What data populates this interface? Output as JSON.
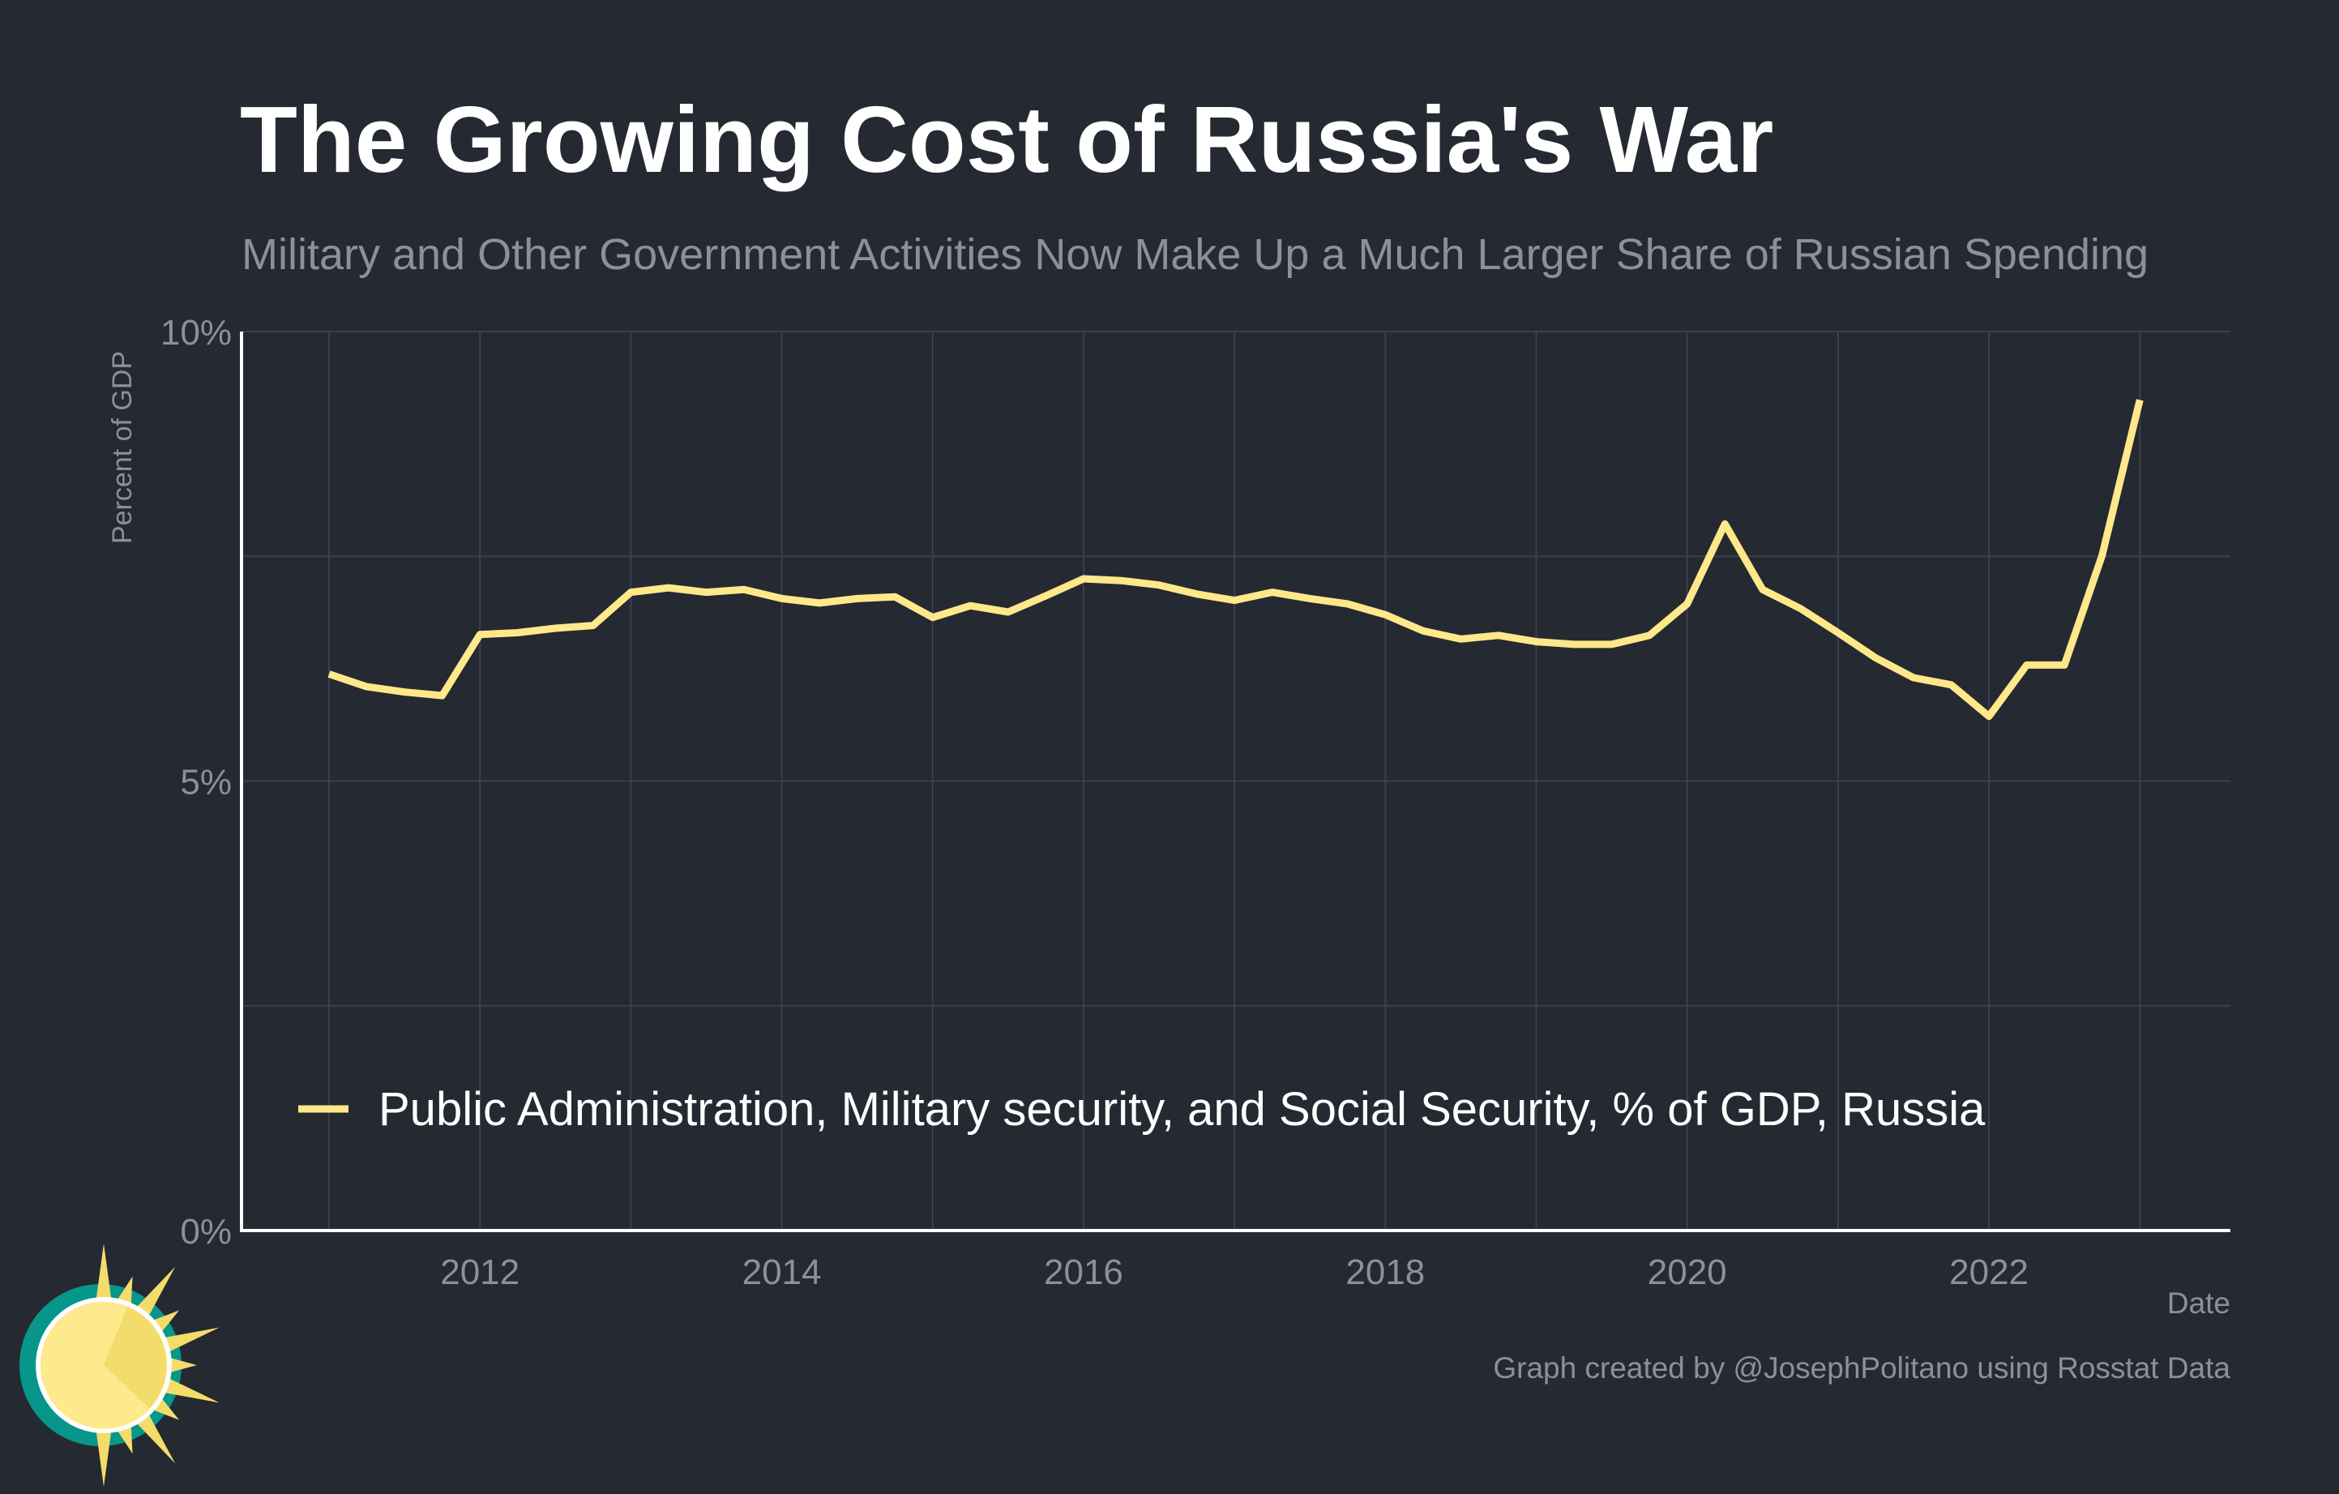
{
  "title": "The Growing Cost of Russia's War",
  "subtitle": "Military and Other Government Activities Now Make Up a Much Larger Share of Russian Spending",
  "credit": "Graph created by @JosephPolitano using Rosstat Data",
  "colors": {
    "background": "#252932",
    "line": "#ffe88a",
    "grid": "#3c404a",
    "axis": "#ffffff",
    "text_muted": "#8e9097",
    "logo_teal": "#07968a",
    "logo_yellow": "#f4dc6a"
  },
  "logo": {
    "icon": "sun-logo-icon"
  },
  "chart_data": {
    "type": "line",
    "xlabel": "Date",
    "ylabel": "Percent of GDP",
    "xlim": [
      2010.42,
      2023.6
    ],
    "ylim": [
      0,
      10
    ],
    "x_ticks": [
      {
        "value": 2012,
        "label": "2012"
      },
      {
        "value": 2014,
        "label": "2014"
      },
      {
        "value": 2016,
        "label": "2016"
      },
      {
        "value": 2018,
        "label": "2018"
      },
      {
        "value": 2020,
        "label": "2020"
      },
      {
        "value": 2022,
        "label": "2022"
      }
    ],
    "y_ticks": [
      {
        "value": 0,
        "label": "0%"
      },
      {
        "value": 5,
        "label": "5%"
      },
      {
        "value": 10,
        "label": "10%"
      }
    ],
    "minor_y_grid": [
      2.5,
      7.5
    ],
    "minor_x_grid": [
      2011,
      2013,
      2015,
      2017,
      2019,
      2021,
      2023
    ],
    "grid": true,
    "legend_placement": "bottom-left",
    "series": [
      {
        "name": "Public Administration, Military security, and Social Security, % of GDP, Russia",
        "x": [
          2011.0,
          2011.25,
          2011.5,
          2011.75,
          2012.0,
          2012.25,
          2012.5,
          2012.75,
          2013.0,
          2013.25,
          2013.5,
          2013.75,
          2014.0,
          2014.25,
          2014.5,
          2014.75,
          2015.0,
          2015.25,
          2015.5,
          2015.75,
          2016.0,
          2016.25,
          2016.5,
          2016.75,
          2017.0,
          2017.25,
          2017.5,
          2017.75,
          2018.0,
          2018.25,
          2018.5,
          2018.75,
          2019.0,
          2019.25,
          2019.5,
          2019.75,
          2020.0,
          2020.25,
          2020.5,
          2020.75,
          2021.0,
          2021.25,
          2021.5,
          2021.75,
          2022.0,
          2022.25,
          2022.5,
          2022.75,
          2023.0
        ],
        "values": [
          6.19,
          6.05,
          5.99,
          5.95,
          6.63,
          6.65,
          6.7,
          6.73,
          7.1,
          7.15,
          7.1,
          7.13,
          7.03,
          6.98,
          7.03,
          7.05,
          6.82,
          6.95,
          6.88,
          7.06,
          7.25,
          7.23,
          7.18,
          7.08,
          7.01,
          7.1,
          7.03,
          6.97,
          6.85,
          6.67,
          6.58,
          6.62,
          6.55,
          6.52,
          6.52,
          6.62,
          6.97,
          7.86,
          7.13,
          6.92,
          6.65,
          6.37,
          6.15,
          6.07,
          5.72,
          6.29,
          6.29,
          7.51,
          9.24
        ]
      }
    ]
  }
}
